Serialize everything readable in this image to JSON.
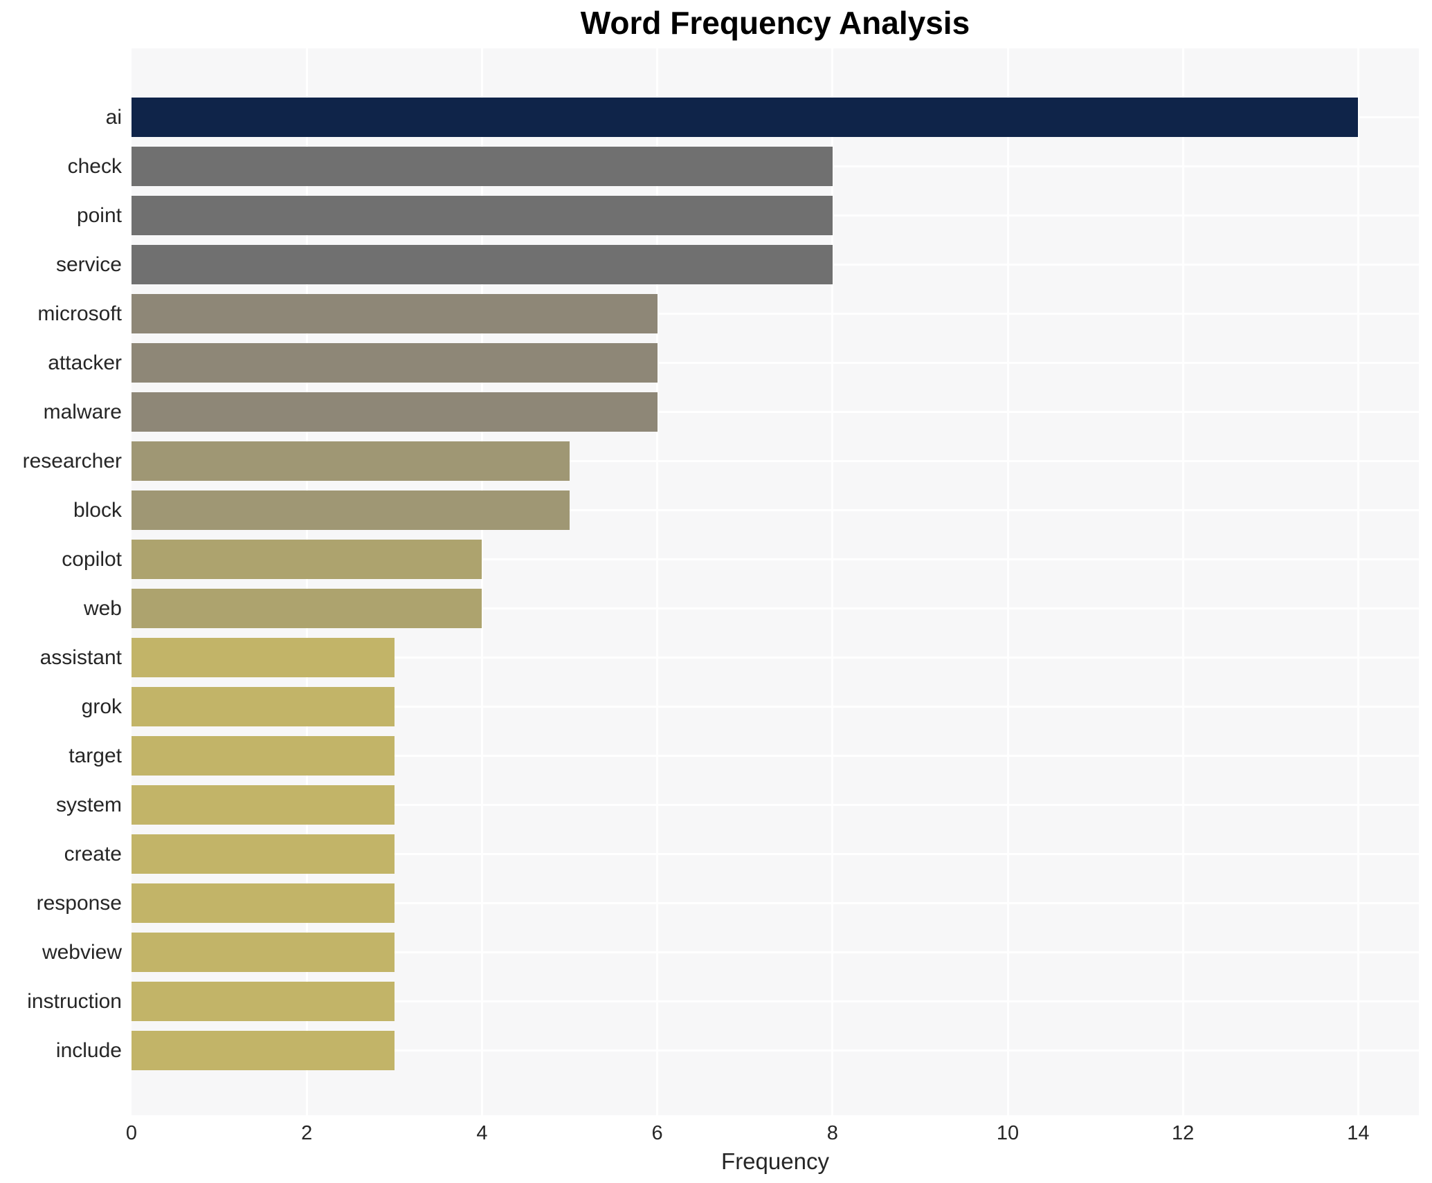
{
  "title": "Word Frequency Analysis",
  "chart_data": {
    "type": "bar",
    "orientation": "horizontal",
    "title": "Word Frequency Analysis",
    "xlabel": "Frequency",
    "ylabel": "",
    "categories": [
      "ai",
      "check",
      "point",
      "service",
      "microsoft",
      "attacker",
      "malware",
      "researcher",
      "block",
      "copilot",
      "web",
      "assistant",
      "grok",
      "target",
      "system",
      "create",
      "response",
      "webview",
      "instruction",
      "include"
    ],
    "values": [
      14,
      8,
      8,
      8,
      6,
      6,
      6,
      5,
      5,
      4,
      4,
      3,
      3,
      3,
      3,
      3,
      3,
      3,
      3,
      3
    ],
    "bar_colors": [
      "#0f2449",
      "#707070",
      "#707070",
      "#707070",
      "#8e8777",
      "#8e8777",
      "#8e8777",
      "#9f9774",
      "#9f9774",
      "#ada36e",
      "#ada36e",
      "#c2b468",
      "#c2b468",
      "#c2b468",
      "#c2b468",
      "#c2b468",
      "#c2b468",
      "#c2b468",
      "#c2b468",
      "#c2b468"
    ],
    "xticks": [
      0,
      2,
      4,
      6,
      8,
      10,
      12,
      14
    ],
    "xlim": [
      0,
      14.7
    ],
    "grid": true,
    "legend": "none",
    "colors": {
      "plot_background": "#f7f7f8",
      "figure_background": "#ffffff",
      "grid_color": "#ffffff",
      "text_color": "#262626",
      "title_color": "#000000"
    }
  }
}
